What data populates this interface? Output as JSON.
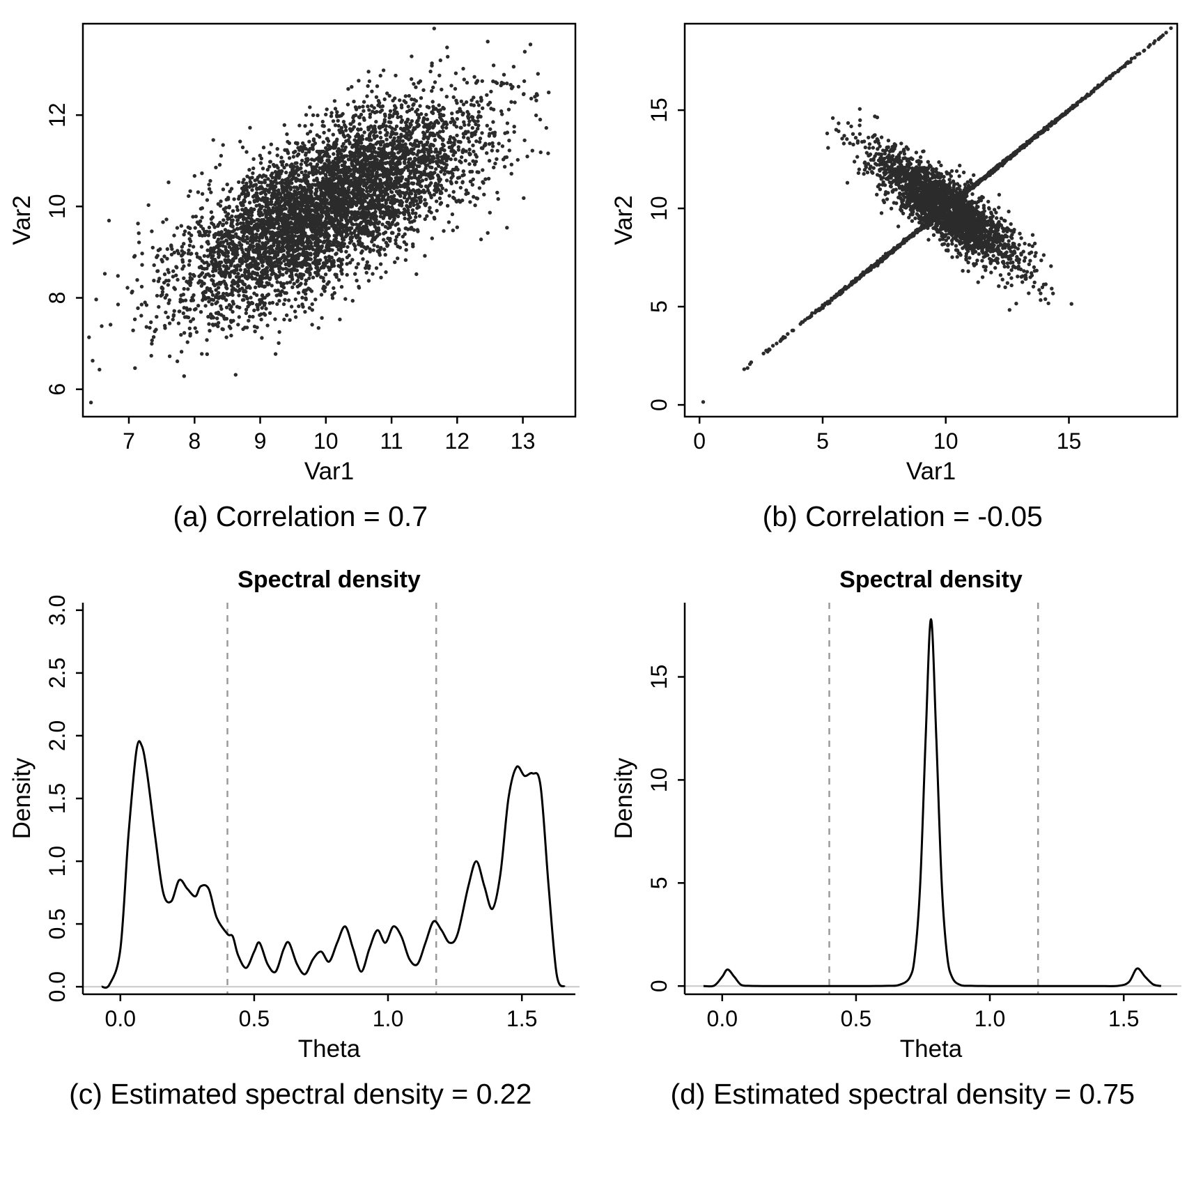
{
  "page": {
    "background": "#ffffff",
    "text_color": "#000000",
    "point_color": "#2b2b2b",
    "dashed_line_color": "#9a9a9a",
    "baseline_color": "#c8c8c8"
  },
  "chart_data": [
    {
      "id": "a",
      "type": "scatter",
      "title": "",
      "xlabel": "Var1",
      "ylabel": "Var2",
      "caption": "(a) Correlation = 0.7",
      "correlation": 0.7,
      "xlim": [
        6.3,
        13.8
      ],
      "ylim": [
        5.4,
        14.0
      ],
      "xticks": {
        "values": [
          7,
          8,
          9,
          10,
          11,
          12,
          13
        ],
        "labels": [
          "7",
          "8",
          "9",
          "10",
          "11",
          "12",
          "13"
        ]
      },
      "yticks": {
        "values": [
          6,
          8,
          10,
          12
        ],
        "labels": [
          "6",
          "8",
          "10",
          "12"
        ]
      },
      "box": "o",
      "point_generator": [
        {
          "kind": "bivariate_normal",
          "n": 5200,
          "mean": [
            10,
            10
          ],
          "sd": [
            1.15,
            1.15
          ],
          "rho": 0.7,
          "seed": 42
        }
      ],
      "extra_points": []
    },
    {
      "id": "b",
      "type": "scatter",
      "title": "",
      "xlabel": "Var1",
      "ylabel": "Var2",
      "caption": "(b) Correlation = -0.05",
      "correlation": -0.05,
      "xlim": [
        -0.6,
        19.4
      ],
      "ylim": [
        -0.6,
        19.4
      ],
      "xticks": {
        "values": [
          0,
          5,
          10,
          15
        ],
        "labels": [
          "0",
          "5",
          "10",
          "15"
        ]
      },
      "yticks": {
        "values": [
          0,
          5,
          10,
          15
        ],
        "labels": [
          "0",
          "5",
          "10",
          "15"
        ]
      },
      "box": "o",
      "point_generator": [
        {
          "kind": "line",
          "n": 1100,
          "x_mean": 10.5,
          "x_sd": 3.4,
          "x_min": 1.8,
          "x_max": 19.2,
          "slope": 1,
          "intercept": 0,
          "noise": 0.04,
          "seed": 7
        },
        {
          "kind": "bivariate_normal",
          "n": 2400,
          "mean": [
            10,
            10
          ],
          "sd": [
            1.5,
            1.5
          ],
          "rho": -0.85,
          "seed": 13
        }
      ],
      "extra_points": [
        [
          0.15,
          0.15
        ]
      ]
    },
    {
      "id": "c",
      "type": "line",
      "title": "Spectral density",
      "xlabel": "Theta",
      "ylabel": "Density",
      "caption": "(c) Estimated spectral density = 0.22",
      "estimated_spectral_density": 0.22,
      "xlim": [
        -0.14,
        1.7
      ],
      "ylim": [
        -0.06,
        3.06
      ],
      "xticks": {
        "values": [
          0.0,
          0.5,
          1.0,
          1.5
        ],
        "labels": [
          "0.0",
          "0.5",
          "1.0",
          "1.5"
        ]
      },
      "yticks": {
        "values": [
          0.0,
          0.5,
          1.0,
          1.5,
          2.0,
          2.5,
          3.0
        ],
        "labels": [
          "0.0",
          "0.5",
          "1.0",
          "1.5",
          "2.0",
          "2.5",
          "3.0"
        ]
      },
      "box": "l",
      "vlines": [
        0.4,
        1.18
      ],
      "hline": 0,
      "points": [
        [
          -0.07,
          0.0
        ],
        [
          -0.04,
          0.02
        ],
        [
          0.0,
          0.3
        ],
        [
          0.03,
          1.2
        ],
        [
          0.06,
          1.88
        ],
        [
          0.08,
          1.92
        ],
        [
          0.1,
          1.7
        ],
        [
          0.13,
          1.2
        ],
        [
          0.16,
          0.75
        ],
        [
          0.19,
          0.68
        ],
        [
          0.22,
          0.85
        ],
        [
          0.25,
          0.78
        ],
        [
          0.28,
          0.72
        ],
        [
          0.3,
          0.8
        ],
        [
          0.33,
          0.78
        ],
        [
          0.36,
          0.55
        ],
        [
          0.4,
          0.42
        ],
        [
          0.42,
          0.4
        ],
        [
          0.44,
          0.25
        ],
        [
          0.47,
          0.15
        ],
        [
          0.5,
          0.28
        ],
        [
          0.52,
          0.35
        ],
        [
          0.55,
          0.18
        ],
        [
          0.58,
          0.12
        ],
        [
          0.61,
          0.3
        ],
        [
          0.63,
          0.35
        ],
        [
          0.66,
          0.18
        ],
        [
          0.69,
          0.1
        ],
        [
          0.72,
          0.22
        ],
        [
          0.75,
          0.28
        ],
        [
          0.78,
          0.2
        ],
        [
          0.81,
          0.35
        ],
        [
          0.84,
          0.48
        ],
        [
          0.87,
          0.3
        ],
        [
          0.9,
          0.12
        ],
        [
          0.93,
          0.3
        ],
        [
          0.96,
          0.45
        ],
        [
          0.99,
          0.35
        ],
        [
          1.02,
          0.48
        ],
        [
          1.05,
          0.4
        ],
        [
          1.08,
          0.22
        ],
        [
          1.11,
          0.18
        ],
        [
          1.14,
          0.35
        ],
        [
          1.17,
          0.52
        ],
        [
          1.2,
          0.45
        ],
        [
          1.23,
          0.35
        ],
        [
          1.26,
          0.42
        ],
        [
          1.3,
          0.8
        ],
        [
          1.33,
          1.0
        ],
        [
          1.36,
          0.8
        ],
        [
          1.39,
          0.62
        ],
        [
          1.42,
          0.9
        ],
        [
          1.45,
          1.5
        ],
        [
          1.48,
          1.75
        ],
        [
          1.51,
          1.68
        ],
        [
          1.54,
          1.7
        ],
        [
          1.57,
          1.6
        ],
        [
          1.6,
          0.8
        ],
        [
          1.63,
          0.1
        ],
        [
          1.66,
          0.0
        ]
      ]
    },
    {
      "id": "d",
      "type": "line",
      "title": "Spectral density",
      "xlabel": "Theta",
      "ylabel": "Density",
      "caption": "(d) Estimated spectral density = 0.75",
      "estimated_spectral_density": 0.75,
      "xlim": [
        -0.14,
        1.7
      ],
      "ylim": [
        -0.4,
        18.6
      ],
      "xticks": {
        "values": [
          0.0,
          0.5,
          1.0,
          1.5
        ],
        "labels": [
          "0.0",
          "0.5",
          "1.0",
          "1.5"
        ]
      },
      "yticks": {
        "values": [
          0,
          5,
          10,
          15
        ],
        "labels": [
          "0",
          "5",
          "10",
          "15"
        ]
      },
      "box": "l",
      "vlines": [
        0.4,
        1.18
      ],
      "hline": 0,
      "points": [
        [
          -0.07,
          0.0
        ],
        [
          -0.03,
          0.02
        ],
        [
          0.0,
          0.45
        ],
        [
          0.02,
          0.8
        ],
        [
          0.045,
          0.45
        ],
        [
          0.07,
          0.06
        ],
        [
          0.1,
          0.01
        ],
        [
          0.15,
          0.0
        ],
        [
          0.25,
          0.0
        ],
        [
          0.35,
          0.0
        ],
        [
          0.45,
          0.0
        ],
        [
          0.55,
          0.0
        ],
        [
          0.62,
          0.01
        ],
        [
          0.66,
          0.05
        ],
        [
          0.7,
          0.4
        ],
        [
          0.72,
          1.5
        ],
        [
          0.74,
          5.0
        ],
        [
          0.76,
          12.0
        ],
        [
          0.78,
          17.8
        ],
        [
          0.8,
          12.0
        ],
        [
          0.82,
          5.0
        ],
        [
          0.84,
          1.5
        ],
        [
          0.86,
          0.4
        ],
        [
          0.89,
          0.05
        ],
        [
          0.93,
          0.01
        ],
        [
          1.0,
          0.0
        ],
        [
          1.1,
          0.0
        ],
        [
          1.2,
          0.0
        ],
        [
          1.3,
          0.0
        ],
        [
          1.4,
          0.0
        ],
        [
          1.48,
          0.01
        ],
        [
          1.52,
          0.2
        ],
        [
          1.55,
          0.85
        ],
        [
          1.58,
          0.45
        ],
        [
          1.61,
          0.08
        ],
        [
          1.64,
          0.0
        ]
      ]
    }
  ]
}
